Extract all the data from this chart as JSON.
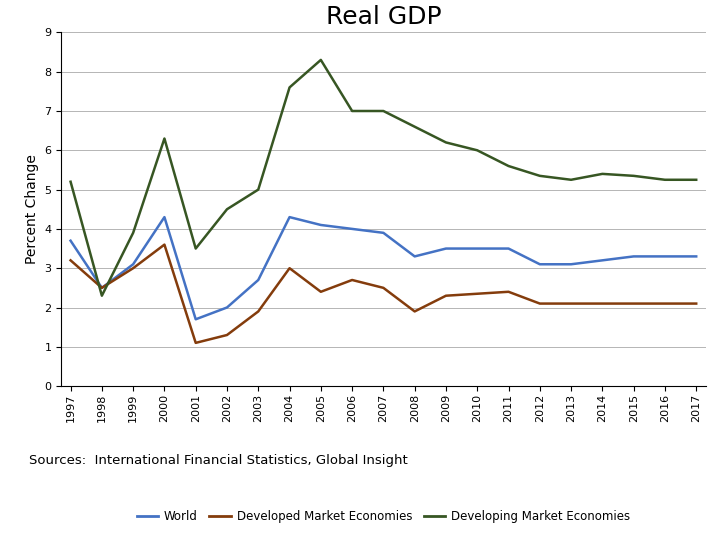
{
  "title": "Real GDP",
  "ylabel": "Percent Change",
  "sources_text": "Sources:  International Financial Statistics, Global Insight",
  "years": [
    1997,
    1998,
    1999,
    2000,
    2001,
    2002,
    2003,
    2004,
    2005,
    2006,
    2007,
    2008,
    2009,
    2010,
    2011,
    2012,
    2013,
    2014,
    2015,
    2016,
    2017
  ],
  "world": [
    3.7,
    2.5,
    3.1,
    4.3,
    1.7,
    2.0,
    2.7,
    4.3,
    4.1,
    4.0,
    3.9,
    3.3,
    3.5,
    3.5,
    3.5,
    3.1,
    3.1,
    3.2,
    3.3,
    3.3,
    3.3
  ],
  "developed": [
    3.2,
    2.5,
    3.0,
    3.6,
    1.1,
    1.3,
    1.9,
    3.0,
    2.4,
    2.7,
    2.5,
    1.9,
    2.3,
    2.35,
    2.4,
    2.1,
    2.1,
    2.1,
    2.1,
    2.1,
    2.1
  ],
  "developing": [
    5.2,
    2.3,
    3.9,
    6.3,
    3.5,
    4.5,
    5.0,
    7.6,
    8.3,
    7.0,
    7.0,
    6.6,
    6.2,
    6.0,
    5.6,
    5.35,
    5.25,
    5.4,
    5.35,
    5.25,
    5.25
  ],
  "world_color": "#4472C4",
  "developed_color": "#843C0C",
  "developing_color": "#375623",
  "ylim": [
    0,
    9
  ],
  "yticks": [
    0,
    1,
    2,
    3,
    4,
    5,
    6,
    7,
    8,
    9
  ],
  "red_color": "#CC0000",
  "title_fontsize": 18,
  "axis_label_fontsize": 10,
  "tick_fontsize": 8,
  "legend_fontsize": 8.5,
  "sources_fontsize": 9.5,
  "isu_title_fontsize": 15,
  "isu_dept_fontsize": 8
}
